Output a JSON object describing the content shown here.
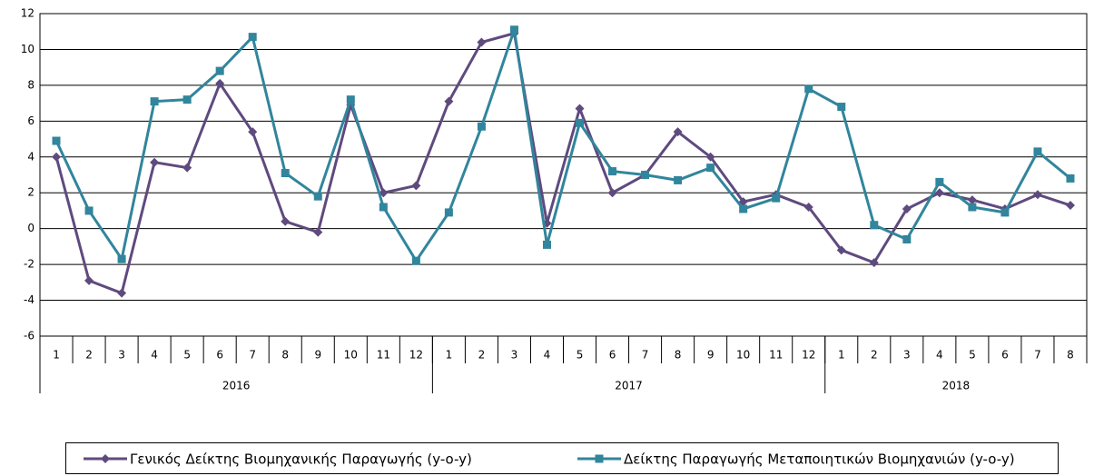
{
  "chart_data": {
    "type": "line",
    "categories": [
      "1",
      "2",
      "3",
      "4",
      "5",
      "6",
      "7",
      "8",
      "9",
      "10",
      "11",
      "12",
      "1",
      "2",
      "3",
      "4",
      "5",
      "6",
      "7",
      "8",
      "9",
      "10",
      "11",
      "12",
      "1",
      "2",
      "3",
      "4",
      "5",
      "6",
      "7",
      "8"
    ],
    "years": [
      "2016",
      "2017",
      "2018"
    ],
    "series": [
      {
        "name": "Γενικός Δείκτης Βιομηχανικής Παραγωγής (y-o-y)",
        "color": "#5f4a7e",
        "marker": "diamond",
        "values": [
          4.0,
          -2.9,
          -3.6,
          3.7,
          3.4,
          8.1,
          5.4,
          0.4,
          -0.2,
          6.9,
          2.0,
          2.4,
          7.1,
          10.4,
          10.9,
          0.3,
          6.7,
          2.0,
          3.0,
          5.4,
          4.0,
          1.5,
          1.9,
          1.2,
          -1.2,
          -1.9,
          1.1,
          2.0,
          1.6,
          1.1,
          1.9,
          1.3
        ]
      },
      {
        "name": "Δείκτης Παραγωγής Μεταποιητικών Βιομηχανιών (y-o-y)",
        "color": "#31859c",
        "marker": "square",
        "values": [
          4.9,
          1.0,
          -1.7,
          7.1,
          7.2,
          8.8,
          10.7,
          3.1,
          1.8,
          7.2,
          1.2,
          -1.8,
          0.9,
          5.7,
          11.1,
          -0.9,
          5.9,
          3.2,
          3.0,
          2.7,
          3.4,
          1.1,
          1.7,
          7.8,
          6.8,
          0.2,
          -0.6,
          2.6,
          1.2,
          0.9,
          4.3,
          2.8
        ]
      }
    ],
    "ylim": [
      -6,
      12
    ],
    "yticks": [
      -6,
      -4,
      -2,
      0,
      2,
      4,
      6,
      8,
      10,
      12
    ],
    "grid": true,
    "legend": "bottom"
  }
}
